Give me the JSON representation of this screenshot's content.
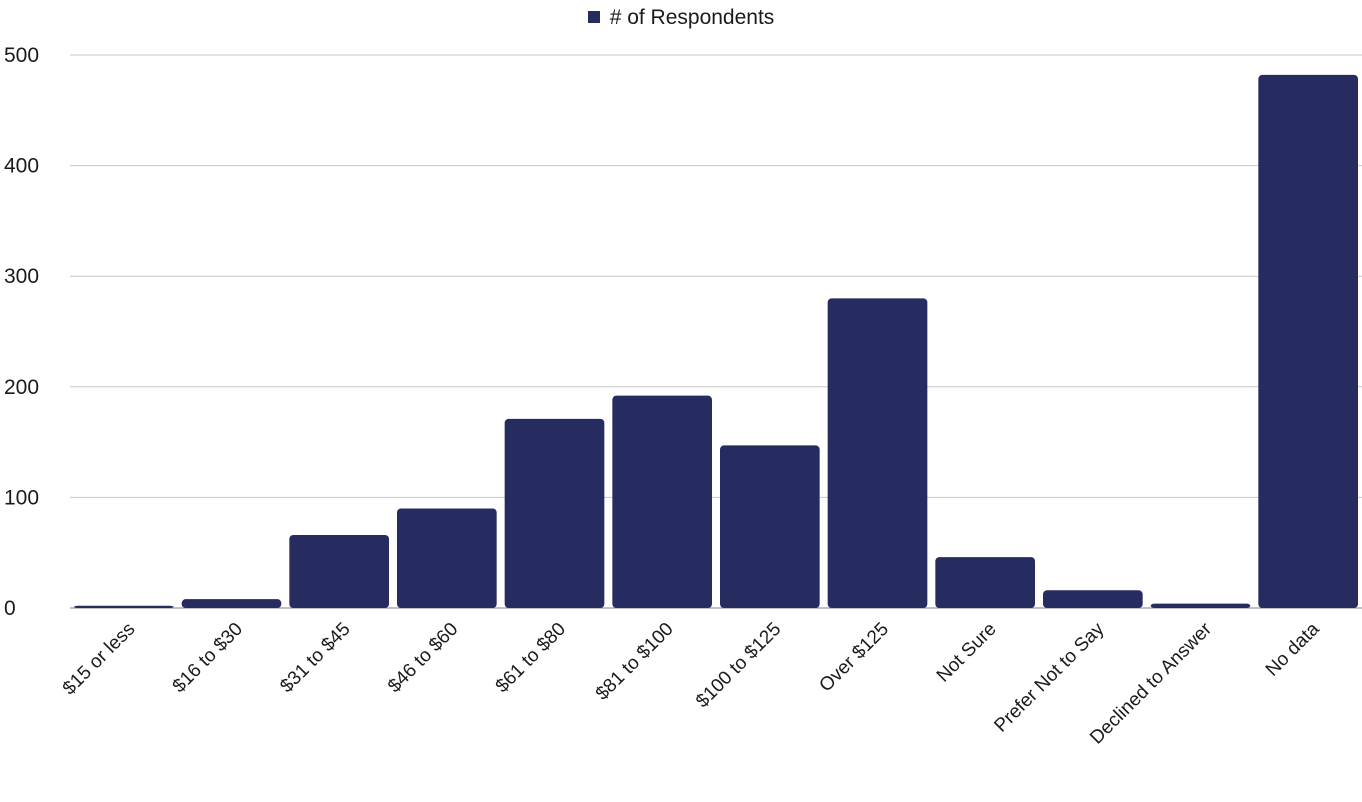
{
  "chart_data": {
    "type": "bar",
    "title": "",
    "xlabel": "",
    "ylabel": "",
    "categories": [
      "$15 or less",
      "$16 to $30",
      "$31 to $45",
      "$46 to $60",
      "$61 to $80",
      "$81 to $100",
      "$100 to $125",
      "Over $125",
      "Not Sure",
      "Prefer Not to Say",
      "Declined to Answer",
      "No data"
    ],
    "series": [
      {
        "name": "# of Respondents",
        "values": [
          2,
          8,
          66,
          90,
          171,
          192,
          147,
          280,
          46,
          16,
          4,
          482
        ],
        "color": "#262c5f"
      }
    ],
    "ylim": [
      0,
      500
    ],
    "yticks": [
      "0",
      "100",
      "200",
      "300",
      "400",
      "500"
    ],
    "grid": true,
    "legend_position": "top-center"
  }
}
